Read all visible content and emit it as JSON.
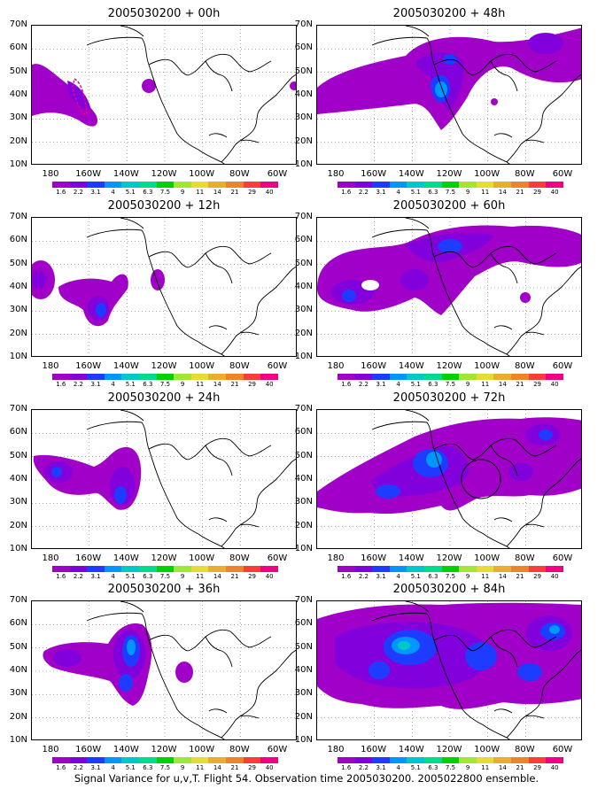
{
  "panels": [
    {
      "title": "2005030200 + 00h"
    },
    {
      "title": "2005030200 + 48h"
    },
    {
      "title": "2005030200 + 12h"
    },
    {
      "title": "2005030200 + 60h"
    },
    {
      "title": "2005030200 + 24h"
    },
    {
      "title": "2005030200 + 72h"
    },
    {
      "title": "2005030200 + 36h"
    },
    {
      "title": "2005030200 + 84h"
    }
  ],
  "lat_labels": [
    "70N",
    "60N",
    "50N",
    "40N",
    "30N",
    "20N",
    "10N"
  ],
  "lon_labels": [
    "180",
    "160W",
    "140W",
    "120W",
    "100W",
    "80W",
    "60W"
  ],
  "colorbar": {
    "labels": [
      "1.6",
      "2.2",
      "3.1",
      "4",
      "5.1",
      "6.3",
      "7.5",
      "9",
      "11",
      "14",
      "21",
      "29",
      "40"
    ],
    "colors": [
      "#a000c8",
      "#8200dc",
      "#1e3cff",
      "#0096ff",
      "#00c8c8",
      "#00dc8c",
      "#00d200",
      "#a0e632",
      "#e6dc32",
      "#e6af2d",
      "#f08228",
      "#fa3c3c",
      "#f00082"
    ]
  },
  "caption": "Signal Variance for u,v,T. Flight 54. Observation time 2005030200. 2005022800 ensemble."
}
